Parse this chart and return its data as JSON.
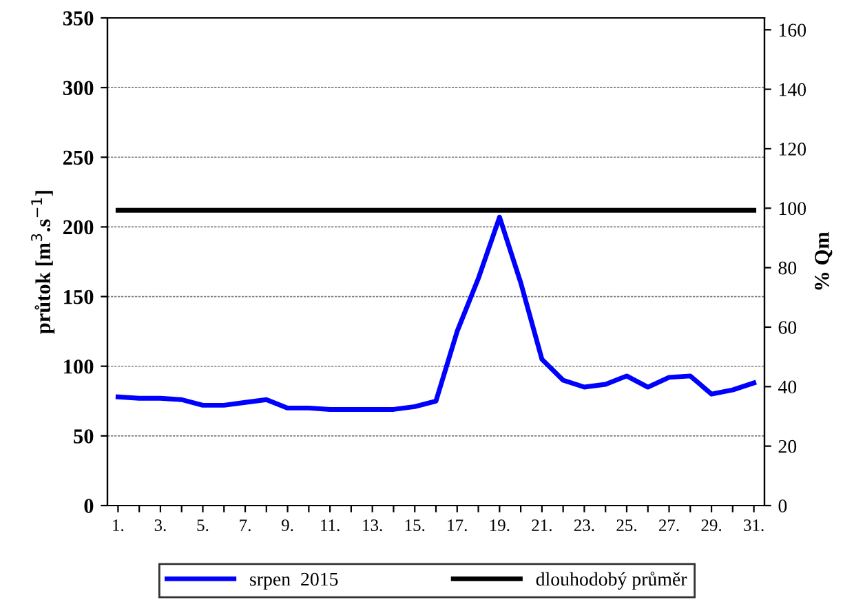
{
  "chart_data": {
    "type": "line",
    "categories": [
      "1.",
      null,
      "3.",
      null,
      "5.",
      null,
      "7.",
      null,
      "9.",
      null,
      "11.",
      null,
      "13.",
      null,
      "15.",
      null,
      "17.",
      null,
      "19.",
      null,
      "21.",
      null,
      "23.",
      null,
      "25.",
      null,
      "27.",
      null,
      "29.",
      null,
      "31."
    ],
    "series": [
      {
        "name": "srpen  2015",
        "color": "#0000ff",
        "values": [
          78,
          77,
          77,
          76,
          72,
          72,
          74,
          76,
          70,
          70,
          69,
          69,
          69,
          69,
          71,
          75,
          125,
          163,
          207,
          160,
          105,
          90,
          85,
          87,
          93,
          85,
          92,
          93,
          80,
          83,
          88
        ]
      },
      {
        "name": "dlouhodobý průměr",
        "color": "#000000",
        "values": [
          212,
          212,
          212,
          212,
          212,
          212,
          212,
          212,
          212,
          212,
          212,
          212,
          212,
          212,
          212,
          212,
          212,
          212,
          212,
          212,
          212,
          212,
          212,
          212,
          212,
          212,
          212,
          212,
          212,
          212,
          212
        ]
      }
    ],
    "ylabel": "průtok [m$^{3}$.s$^{−1}$]",
    "y2label": "% Qm",
    "ylim": [
      0,
      350
    ],
    "yticks": [
      0,
      50,
      100,
      150,
      200,
      250,
      300,
      350
    ],
    "y2lim": [
      0,
      164
    ],
    "y2ticks": [
      0,
      20,
      40,
      60,
      80,
      100,
      120,
      140,
      160
    ],
    "grid": "y",
    "legend": "bottom",
    "marker": "none",
    "line_style": "solid"
  }
}
